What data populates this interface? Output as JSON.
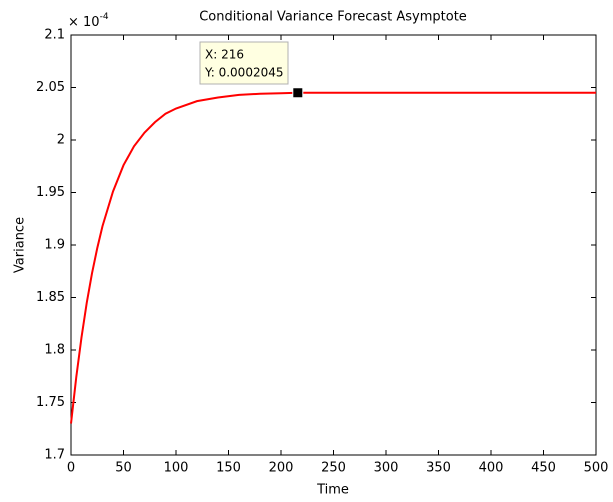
{
  "chart_data": {
    "type": "line",
    "title": "Conditional Variance Forecast Asymptote",
    "x_label": "Time",
    "y_label": "Variance",
    "y_multiplier": {
      "base": "× 10",
      "exponent": "-4"
    },
    "x": [
      0,
      5,
      10,
      15,
      20,
      25,
      30,
      40,
      50,
      60,
      70,
      80,
      90,
      100,
      120,
      140,
      160,
      180,
      200,
      216,
      250,
      300,
      350,
      400,
      450,
      500
    ],
    "series": [
      {
        "color": "#ff0000",
        "values": [
          1.73,
          1.774,
          1.812,
          1.845,
          1.873,
          1.897,
          1.918,
          1.951,
          1.976,
          1.994,
          2.007,
          2.017,
          2.025,
          2.03,
          2.037,
          2.0405,
          2.043,
          2.044,
          2.0445,
          2.045,
          2.045,
          2.045,
          2.045,
          2.045,
          2.045,
          2.045
        ]
      }
    ],
    "xlim": [
      0,
      500
    ],
    "xticks": [
      0,
      50,
      100,
      150,
      200,
      250,
      300,
      350,
      400,
      450,
      500
    ],
    "ylim": [
      1.7,
      2.1
    ],
    "yticks": [
      1.7,
      1.75,
      1.8,
      1.85,
      1.9,
      1.95,
      2,
      2.05,
      2.1
    ],
    "grid": false,
    "datatip": {
      "x": 216,
      "y": 2.045,
      "x_text": "X: 216",
      "y_text": "Y: 0.0002045"
    }
  }
}
